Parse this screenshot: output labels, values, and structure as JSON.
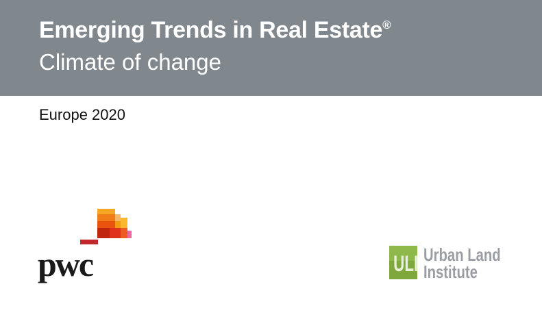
{
  "header": {
    "title": "Emerging Trends in Real Estate",
    "title_mark": "®",
    "subtitle": "Climate of change",
    "band_color": "#80878d"
  },
  "edition": "Europe 2020",
  "logos": {
    "pwc": {
      "text": "pwc"
    },
    "uli": {
      "mark": "ULI",
      "line1": "Urban Land",
      "line2": "Institute",
      "color": "#7ea83c"
    }
  }
}
